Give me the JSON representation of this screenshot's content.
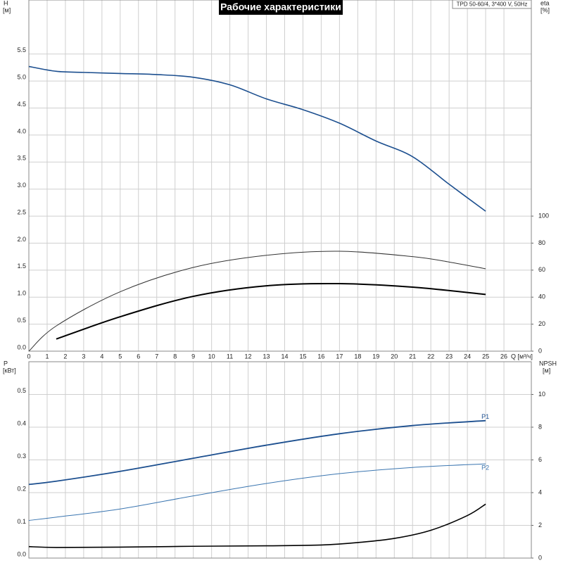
{
  "chart_data": [
    {
      "type": "line",
      "title": "Рабочие характеристики",
      "subtitle": "TPD 50-60/4, 3*400 V, 50Hz",
      "ylabel": "H",
      "ylabel_unit": "[м]",
      "y2label": "eta",
      "y2label_unit": "[%]",
      "xlabel": "Q [м³/ч]",
      "xlim": [
        0,
        27.5
      ],
      "xticks": [
        0,
        1,
        2,
        3,
        4,
        5,
        6,
        7,
        8,
        9,
        10,
        11,
        12,
        13,
        14,
        15,
        16,
        17,
        18,
        19,
        20,
        21,
        22,
        23,
        24,
        25,
        26
      ],
      "ylim": [
        0,
        6.5
      ],
      "yticks": [
        {
          "value": 0,
          "label": "0.0"
        },
        0.5,
        {
          "value": 1,
          "label": "1.0"
        },
        1.5,
        {
          "value": 2,
          "label": "2.0"
        },
        2.5,
        {
          "value": 3,
          "label": "3.0"
        },
        3.5,
        {
          "value": 4,
          "label": "4.0"
        },
        4.5,
        {
          "value": 5,
          "label": "5.0"
        },
        5.5
      ],
      "y2lim": [
        0,
        260
      ],
      "y2ticks": [
        0,
        20,
        40,
        60,
        80,
        100
      ],
      "grid": true,
      "series": [
        {
          "color": "#1c4f8f",
          "width": 1.6,
          "x": [
            0,
            1.5,
            3,
            5,
            7,
            9,
            11,
            13,
            15,
            17,
            19,
            21,
            23,
            25
          ],
          "values": [
            5.27,
            5.18,
            5.16,
            5.14,
            5.12,
            5.07,
            4.93,
            4.67,
            4.47,
            4.22,
            3.89,
            3.6,
            3.09,
            2.59
          ]
        },
        {
          "color": "#333333",
          "width": 1,
          "axis": "y2",
          "x": [
            0,
            1.5,
            5,
            9,
            13,
            17,
            21,
            23,
            25
          ],
          "values": [
            0,
            18.7,
            44,
            62,
            71,
            74,
            70,
            66,
            61
          ]
        },
        {
          "color": "#000000",
          "width": 2,
          "axis": "y2",
          "x": [
            1.5,
            5,
            9,
            13,
            17,
            21,
            25
          ],
          "values": [
            9,
            25.5,
            40.6,
            48.4,
            50,
            47.4,
            42
          ]
        }
      ]
    },
    {
      "type": "line",
      "ylabel": "P",
      "ylabel_unit": "[кВт]",
      "y2label": "NPSH",
      "y2label_unit": "[м]",
      "xlim": [
        0,
        27.5
      ],
      "ylim": [
        0,
        0.6
      ],
      "yticks": [
        {
          "value": 0,
          "label": "0.0"
        },
        0.1,
        0.2,
        0.3,
        0.4,
        0.5
      ],
      "y2lim": [
        0,
        12
      ],
      "y2ticks": [
        0,
        2,
        4,
        6,
        8,
        10
      ],
      "grid": true,
      "series": [
        {
          "name": "P1",
          "color": "#1c4f8f",
          "width": 1.8,
          "x": [
            0,
            1.5,
            5,
            9,
            13,
            17,
            21,
            25
          ],
          "values": [
            0.225,
            0.235,
            0.265,
            0.305,
            0.345,
            0.38,
            0.405,
            0.42
          ]
        },
        {
          "name": "P2",
          "color": "#3a75b0",
          "width": 1,
          "x": [
            0,
            1.5,
            5,
            9,
            13,
            17,
            21,
            25
          ],
          "values": [
            0.115,
            0.125,
            0.15,
            0.19,
            0.228,
            0.258,
            0.277,
            0.288
          ]
        },
        {
          "color": "#000000",
          "width": 1.6,
          "axis": "y2",
          "x": [
            0,
            1.5,
            5,
            9,
            13,
            16,
            18,
            20,
            22,
            24,
            25
          ],
          "values": [
            0.7,
            0.65,
            0.67,
            0.72,
            0.75,
            0.8,
            0.95,
            1.2,
            1.7,
            2.6,
            3.3
          ]
        }
      ]
    }
  ]
}
